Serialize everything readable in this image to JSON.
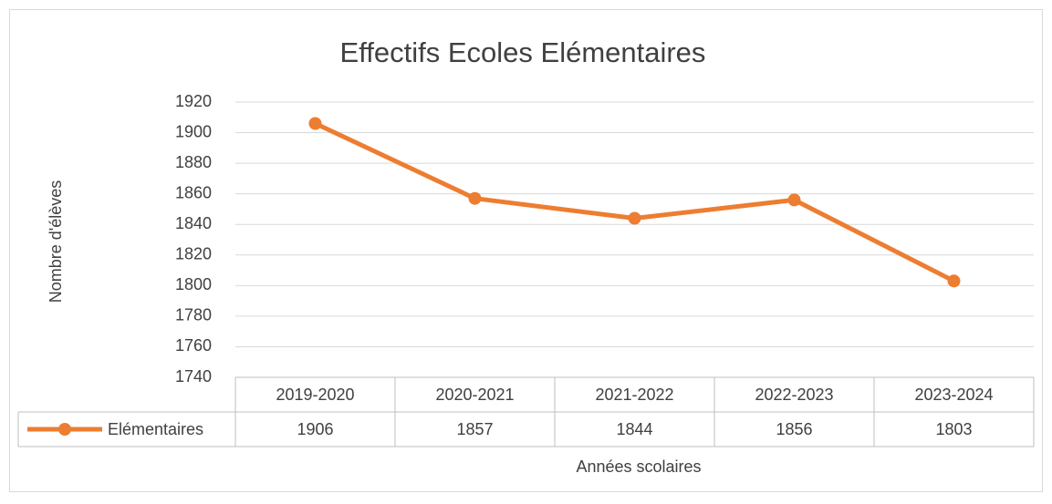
{
  "chart_data": {
    "type": "line",
    "title": "Effectifs Ecoles Elémentaires",
    "y_label": "Nombre d'élèves",
    "x_label": "Années scolaires",
    "categories": [
      "2019-2020",
      "2020-2021",
      "2021-2022",
      "2022-2023",
      "2023-2024"
    ],
    "series": [
      {
        "name": "Elémentaires",
        "color": "#ed7d31",
        "values": [
          1906,
          1857,
          1844,
          1856,
          1803
        ]
      }
    ],
    "ylim": [
      1740,
      1920
    ],
    "yticks": [
      1740,
      1760,
      1780,
      1800,
      1820,
      1840,
      1860,
      1880,
      1900,
      1920
    ],
    "grid": true,
    "data_table": true
  }
}
